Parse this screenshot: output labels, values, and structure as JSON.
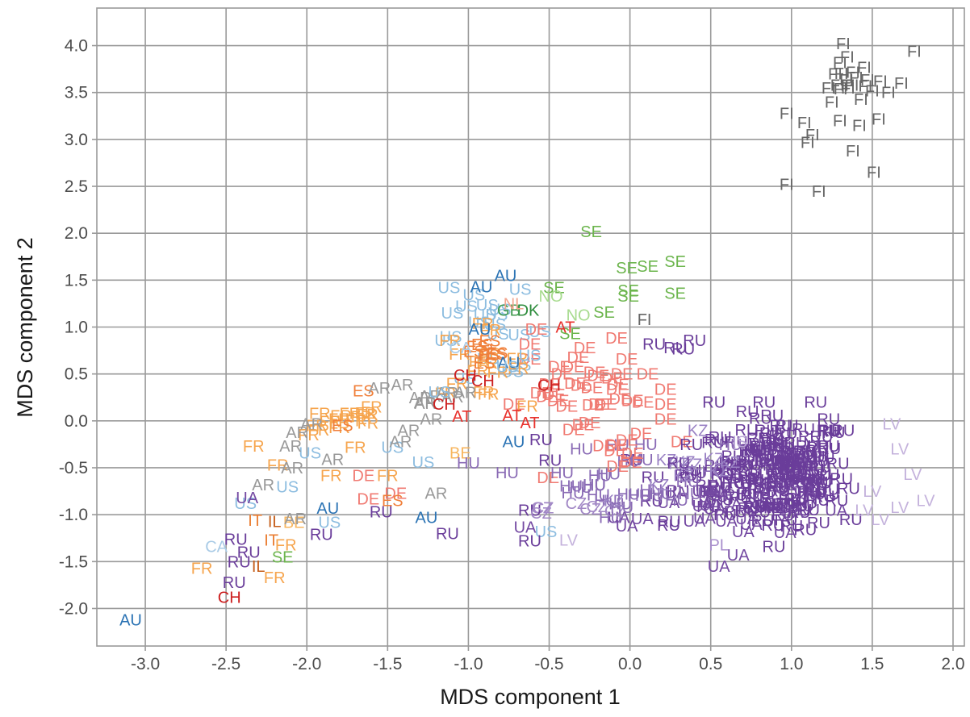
{
  "chart_data": {
    "type": "scatter",
    "title": "",
    "xlabel": "MDS component 1",
    "ylabel": "MDS component 2",
    "xlim": [
      -3.3,
      2.07
    ],
    "ylim": [
      -2.4,
      4.4
    ],
    "xticks": [
      -3.0,
      -2.5,
      -2.0,
      -1.5,
      -1.0,
      -0.5,
      0.0,
      0.5,
      1.0,
      1.5,
      2.0
    ],
    "yticks": [
      -2.0,
      -1.5,
      -1.0,
      -0.5,
      0.0,
      0.5,
      1.0,
      1.5,
      2.0,
      2.5,
      3.0,
      3.5,
      4.0
    ],
    "grid": true,
    "legend": "none",
    "colors": {
      "FI": "#666666",
      "SE": "#6cb54d",
      "NO": "#a8db8f",
      "DK": "#2c8b3b",
      "GB": "#3f9a4e",
      "AU": "#2b73b4",
      "US": "#8dbde0",
      "CA": "#a9cbe6",
      "DE": "#f07a72",
      "AT": "#e8312c",
      "CH": "#cc1f1f",
      "FR": "#f6a54e",
      "ES": "#f07f3a",
      "BE": "#f7b65f",
      "IT": "#ea7d32",
      "IL": "#c55d18",
      "AR": "#999999",
      "RU": "#6a3d9a",
      "UA": "#7449a2",
      "HU": "#8a6bb5",
      "LV": "#c4b2dc",
      "KZ": "#9a82c4",
      "PL": "#a98fcd",
      "IS": "#b9a5d6",
      "NL": "#f2a58f",
      "CZ": "#a288c6"
    },
    "points": [
      {
        "l": "FI",
        "x": 1.32,
        "y": 4.02
      },
      {
        "l": "FI",
        "x": 1.76,
        "y": 3.94
      },
      {
        "l": "FI",
        "x": 1.3,
        "y": 3.82
      },
      {
        "l": "FI",
        "x": 1.45,
        "y": 3.77
      },
      {
        "l": "FI",
        "x": 1.27,
        "y": 3.7
      },
      {
        "l": "FI",
        "x": 1.4,
        "y": 3.66
      },
      {
        "l": "FI",
        "x": 1.55,
        "y": 3.62
      },
      {
        "l": "FI",
        "x": 1.68,
        "y": 3.6
      },
      {
        "l": "FI",
        "x": 1.23,
        "y": 3.55
      },
      {
        "l": "FI",
        "x": 1.35,
        "y": 3.55
      },
      {
        "l": "FI",
        "x": 1.5,
        "y": 3.52
      },
      {
        "l": "FI",
        "x": 1.6,
        "y": 3.5
      },
      {
        "l": "FI",
        "x": 1.25,
        "y": 3.4
      },
      {
        "l": "FI",
        "x": 1.43,
        "y": 3.43
      },
      {
        "l": "FI",
        "x": 0.97,
        "y": 3.28
      },
      {
        "l": "FI",
        "x": 1.08,
        "y": 3.18
      },
      {
        "l": "FI",
        "x": 1.3,
        "y": 3.2
      },
      {
        "l": "FI",
        "x": 1.42,
        "y": 3.15
      },
      {
        "l": "FI",
        "x": 1.54,
        "y": 3.22
      },
      {
        "l": "FI",
        "x": 1.13,
        "y": 3.05
      },
      {
        "l": "FI",
        "x": 1.1,
        "y": 2.97
      },
      {
        "l": "FI",
        "x": 1.38,
        "y": 2.88
      },
      {
        "l": "FI",
        "x": 1.51,
        "y": 2.65
      },
      {
        "l": "FI",
        "x": 0.97,
        "y": 2.52
      },
      {
        "l": "FI",
        "x": 1.17,
        "y": 2.45
      },
      {
        "l": "FI",
        "x": 0.09,
        "y": 1.08
      },
      {
        "l": "SE",
        "x": -0.24,
        "y": 2.02
      },
      {
        "l": "SE",
        "x": -0.02,
        "y": 1.63
      },
      {
        "l": "SE",
        "x": 0.11,
        "y": 1.65
      },
      {
        "l": "SE",
        "x": 0.28,
        "y": 1.7
      },
      {
        "l": "SE",
        "x": -0.01,
        "y": 1.39
      },
      {
        "l": "SE",
        "x": -0.47,
        "y": 1.42
      },
      {
        "l": "SE",
        "x": -0.16,
        "y": 1.16
      },
      {
        "l": "SE",
        "x": 0.28,
        "y": 1.36
      },
      {
        "l": "SE",
        "x": -0.01,
        "y": 1.33
      },
      {
        "l": "SE",
        "x": -0.37,
        "y": 0.93
      },
      {
        "l": "SE",
        "x": -2.15,
        "y": -1.45
      },
      {
        "l": "NO",
        "x": -0.49,
        "y": 1.33
      },
      {
        "l": "NO",
        "x": -0.32,
        "y": 1.13
      },
      {
        "l": "DK",
        "x": -0.63,
        "y": 1.18
      },
      {
        "l": "GB",
        "x": -0.75,
        "y": 1.18
      },
      {
        "l": "AU",
        "x": -0.77,
        "y": 1.55
      },
      {
        "l": "AU",
        "x": -0.92,
        "y": 1.43
      },
      {
        "l": "AU",
        "x": -0.93,
        "y": 0.98
      },
      {
        "l": "AU",
        "x": -0.72,
        "y": -0.22
      },
      {
        "l": "AU",
        "x": -1.87,
        "y": -0.93
      },
      {
        "l": "AU",
        "x": -1.26,
        "y": -1.03
      },
      {
        "l": "AU",
        "x": -3.09,
        "y": -2.12
      },
      {
        "l": "AU",
        "x": -0.75,
        "y": 0.62
      },
      {
        "l": "US",
        "x": -1.12,
        "y": 1.42
      },
      {
        "l": "US",
        "x": -1.1,
        "y": 1.15
      },
      {
        "l": "US",
        "x": -0.76,
        "y": 0.58
      },
      {
        "l": "US",
        "x": -1.18,
        "y": 0.31
      },
      {
        "l": "US",
        "x": -1.98,
        "y": -0.34
      },
      {
        "l": "US",
        "x": -1.28,
        "y": -0.44
      },
      {
        "l": "US",
        "x": -2.12,
        "y": -0.7
      },
      {
        "l": "US",
        "x": -2.38,
        "y": -0.88
      },
      {
        "l": "US",
        "x": -1.86,
        "y": -1.08
      },
      {
        "l": "US",
        "x": -0.52,
        "y": -1.18
      },
      {
        "l": "US",
        "x": -0.62,
        "y": 0.7
      },
      {
        "l": "US",
        "x": -1.47,
        "y": -0.28
      },
      {
        "l": "CA",
        "x": -2.56,
        "y": -1.34
      },
      {
        "l": "CA",
        "x": -1.05,
        "y": 0.78
      },
      {
        "l": "DE",
        "x": -0.58,
        "y": 0.98
      },
      {
        "l": "DE",
        "x": -0.62,
        "y": 0.82
      },
      {
        "l": "DE",
        "x": -0.28,
        "y": 0.78
      },
      {
        "l": "DE",
        "x": -0.02,
        "y": 0.66
      },
      {
        "l": "DE",
        "x": -0.35,
        "y": 0.58
      },
      {
        "l": "DE",
        "x": -0.22,
        "y": 0.52
      },
      {
        "l": "DE",
        "x": -0.08,
        "y": 0.34
      },
      {
        "l": "DE",
        "x": 0.22,
        "y": 0.34
      },
      {
        "l": "DE",
        "x": -0.55,
        "y": 0.3
      },
      {
        "l": "DE",
        "x": 0.22,
        "y": 0.18
      },
      {
        "l": "DE",
        "x": -0.15,
        "y": 0.18
      },
      {
        "l": "DE",
        "x": 0.22,
        "y": 0.02
      },
      {
        "l": "DE",
        "x": -0.25,
        "y": -0.02
      },
      {
        "l": "DE",
        "x": -1.65,
        "y": -0.58
      },
      {
        "l": "DE",
        "x": -1.62,
        "y": -0.83
      },
      {
        "l": "DE",
        "x": -1.45,
        "y": -0.77
      },
      {
        "l": "DE",
        "x": -0.42,
        "y": 0.5
      },
      {
        "l": "DE",
        "x": -0.05,
        "y": 0.5
      },
      {
        "l": "DE",
        "x": -0.3,
        "y": 0.38
      },
      {
        "l": "DE",
        "x": 0.08,
        "y": 0.2
      },
      {
        "l": "AT",
        "x": -1.04,
        "y": 0.05
      },
      {
        "l": "AT",
        "x": -0.73,
        "y": 0.06
      },
      {
        "l": "AT",
        "x": -0.62,
        "y": -0.02
      },
      {
        "l": "AT",
        "x": -0.4,
        "y": 1.0
      },
      {
        "l": "CH",
        "x": -1.02,
        "y": 0.49
      },
      {
        "l": "CH",
        "x": -1.15,
        "y": 0.18
      },
      {
        "l": "CH",
        "x": -0.91,
        "y": 0.43
      },
      {
        "l": "CH",
        "x": -0.5,
        "y": 0.38
      },
      {
        "l": "CH",
        "x": -2.48,
        "y": -1.88
      },
      {
        "l": "FR",
        "x": -2.33,
        "y": -0.27
      },
      {
        "l": "FR",
        "x": -2.18,
        "y": -0.47
      },
      {
        "l": "FR",
        "x": -1.7,
        "y": -0.28
      },
      {
        "l": "FR",
        "x": -1.85,
        "y": -0.58
      },
      {
        "l": "FR",
        "x": -1.5,
        "y": -0.58
      },
      {
        "l": "FR",
        "x": -2.13,
        "y": -1.32
      },
      {
        "l": "FR",
        "x": -2.2,
        "y": -1.67
      },
      {
        "l": "FR",
        "x": -2.65,
        "y": -1.57
      },
      {
        "l": "FR",
        "x": -1.92,
        "y": 0.08
      },
      {
        "l": "FR",
        "x": -1.8,
        "y": 0.02
      },
      {
        "l": "FR",
        "x": -1.6,
        "y": 0.15
      },
      {
        "l": "ES",
        "x": -1.78,
        "y": -0.05
      },
      {
        "l": "ES",
        "x": -1.47,
        "y": -0.85
      },
      {
        "l": "ES",
        "x": -1.65,
        "y": 0.32
      },
      {
        "l": "BE",
        "x": -2.08,
        "y": -1.08
      },
      {
        "l": "BE",
        "x": -1.05,
        "y": -0.34
      },
      {
        "l": "IT",
        "x": -2.32,
        "y": -1.06
      },
      {
        "l": "IT",
        "x": -2.22,
        "y": -1.27
      },
      {
        "l": "IL",
        "x": -2.3,
        "y": -1.55
      },
      {
        "l": "IL",
        "x": -2.2,
        "y": -1.07
      },
      {
        "l": "AR",
        "x": -1.55,
        "y": 0.35
      },
      {
        "l": "AR",
        "x": -1.97,
        "y": -0.03
      },
      {
        "l": "AR",
        "x": -2.06,
        "y": -0.12
      },
      {
        "l": "AR",
        "x": -2.1,
        "y": -0.27
      },
      {
        "l": "AR",
        "x": -1.84,
        "y": -0.41
      },
      {
        "l": "AR",
        "x": -2.09,
        "y": -0.5
      },
      {
        "l": "AR",
        "x": -2.27,
        "y": -0.68
      },
      {
        "l": "AR",
        "x": -1.42,
        "y": -0.22
      },
      {
        "l": "AR",
        "x": -1.37,
        "y": -0.1
      },
      {
        "l": "AR",
        "x": -1.23,
        "y": 0.02
      },
      {
        "l": "AR",
        "x": -1.2,
        "y": -0.77
      },
      {
        "l": "AR",
        "x": -2.07,
        "y": -1.04
      },
      {
        "l": "RU",
        "x": 0.15,
        "y": 0.82
      },
      {
        "l": "RU",
        "x": 0.28,
        "y": 0.78
      },
      {
        "l": "RU",
        "x": 0.4,
        "y": 0.86
      },
      {
        "l": "RU",
        "x": 0.33,
        "y": 0.77
      },
      {
        "l": "RU",
        "x": 0.52,
        "y": 0.2
      },
      {
        "l": "RU",
        "x": 1.15,
        "y": 0.2
      },
      {
        "l": "RU",
        "x": 1.23,
        "y": 0.02
      },
      {
        "l": "RU",
        "x": 0.95,
        "y": -0.25
      },
      {
        "l": "RU",
        "x": 0.38,
        "y": -0.25
      },
      {
        "l": "RU",
        "x": -1.54,
        "y": -0.97
      },
      {
        "l": "RU",
        "x": -2.44,
        "y": -1.26
      },
      {
        "l": "RU",
        "x": -2.36,
        "y": -1.4
      },
      {
        "l": "RU",
        "x": -2.42,
        "y": -1.5
      },
      {
        "l": "RU",
        "x": -2.45,
        "y": -1.72
      },
      {
        "l": "RU",
        "x": -1.91,
        "y": -1.21
      },
      {
        "l": "RU",
        "x": -1.13,
        "y": -1.2
      },
      {
        "l": "RU",
        "x": -0.62,
        "y": -0.95
      },
      {
        "l": "RU",
        "x": -0.62,
        "y": -1.28
      },
      {
        "l": "RU",
        "x": 1.32,
        "y": -0.1
      },
      {
        "l": "RU",
        "x": 1.0,
        "y": -1.12
      },
      {
        "l": "RU",
        "x": 1.28,
        "y": -0.85
      },
      {
        "l": "RU",
        "x": -0.55,
        "y": -0.2
      },
      {
        "l": "RU",
        "x": 0.3,
        "y": -0.45
      },
      {
        "l": "UA",
        "x": -2.37,
        "y": -0.82
      },
      {
        "l": "UA",
        "x": -0.65,
        "y": -1.13
      },
      {
        "l": "UA",
        "x": 0.55,
        "y": -1.55
      },
      {
        "l": "UA",
        "x": 0.67,
        "y": -1.43
      },
      {
        "l": "UA",
        "x": -0.02,
        "y": -1.12
      },
      {
        "l": "UA",
        "x": 0.75,
        "y": -1.1
      },
      {
        "l": "HU",
        "x": -1.0,
        "y": -0.45
      },
      {
        "l": "HU",
        "x": -0.42,
        "y": -0.55
      },
      {
        "l": "HU",
        "x": -0.22,
        "y": -0.68
      },
      {
        "l": "HU",
        "x": -0.05,
        "y": -0.92
      },
      {
        "l": "HU",
        "x": -0.3,
        "y": -0.3
      },
      {
        "l": "LV",
        "x": 1.62,
        "y": -0.03
      },
      {
        "l": "LV",
        "x": 1.67,
        "y": -0.3
      },
      {
        "l": "LV",
        "x": 1.75,
        "y": -0.57
      },
      {
        "l": "LV",
        "x": 1.5,
        "y": -0.75
      },
      {
        "l": "LV",
        "x": 1.67,
        "y": -0.92
      },
      {
        "l": "LV",
        "x": 1.83,
        "y": -0.85
      },
      {
        "l": "LV",
        "x": 1.55,
        "y": -1.05
      },
      {
        "l": "LV",
        "x": 1.45,
        "y": -0.95
      },
      {
        "l": "LV",
        "x": -0.38,
        "y": -1.27
      },
      {
        "l": "KZ",
        "x": -0.1,
        "y": -0.85
      },
      {
        "l": "KZ",
        "x": 0.18,
        "y": -0.68
      },
      {
        "l": "KZ",
        "x": 0.42,
        "y": -0.1
      },
      {
        "l": "PL",
        "x": 0.55,
        "y": -1.32
      },
      {
        "l": "IS",
        "x": 0.68,
        "y": -0.22
      },
      {
        "l": "NL",
        "x": -0.72,
        "y": 1.25
      },
      {
        "l": "CZ",
        "x": -0.55,
        "y": -0.98
      }
    ],
    "clusters": [
      {
        "l": "RU",
        "count": 170,
        "cx": 0.95,
        "cy": -0.55,
        "sx": 0.19,
        "sy": 0.3
      },
      {
        "l": "RU",
        "count": 35,
        "cx": 0.55,
        "cy": -0.65,
        "sx": 0.3,
        "sy": 0.2
      },
      {
        "l": "UA",
        "count": 25,
        "cx": 0.5,
        "cy": -0.9,
        "sx": 0.28,
        "sy": 0.18
      },
      {
        "l": "HU",
        "count": 25,
        "cx": 0.05,
        "cy": -0.6,
        "sx": 0.28,
        "sy": 0.2
      },
      {
        "l": "DE",
        "count": 22,
        "cx": -0.28,
        "cy": 0.28,
        "sx": 0.22,
        "sy": 0.26
      },
      {
        "l": "DE",
        "count": 10,
        "cx": 0.0,
        "cy": -0.22,
        "sx": 0.2,
        "sy": 0.1
      },
      {
        "l": "US",
        "count": 18,
        "cx": -0.85,
        "cy": 0.92,
        "sx": 0.18,
        "sy": 0.22
      },
      {
        "l": "FR",
        "count": 16,
        "cx": -0.95,
        "cy": 0.62,
        "sx": 0.14,
        "sy": 0.18
      },
      {
        "l": "ES",
        "count": 8,
        "cx": -0.9,
        "cy": 0.62,
        "sx": 0.12,
        "sy": 0.12
      },
      {
        "l": "FR",
        "count": 12,
        "cx": -1.75,
        "cy": 0.0,
        "sx": 0.12,
        "sy": 0.08
      },
      {
        "l": "AR",
        "count": 8,
        "cx": -1.2,
        "cy": 0.3,
        "sx": 0.15,
        "sy": 0.1
      },
      {
        "l": "KZ",
        "count": 8,
        "cx": 0.35,
        "cy": -0.45,
        "sx": 0.22,
        "sy": 0.12
      },
      {
        "l": "CZ",
        "count": 6,
        "cx": -0.25,
        "cy": -0.92,
        "sx": 0.14,
        "sy": 0.08
      },
      {
        "l": "FI",
        "count": 10,
        "cx": 1.38,
        "cy": 3.62,
        "sx": 0.08,
        "sy": 0.08
      }
    ]
  }
}
